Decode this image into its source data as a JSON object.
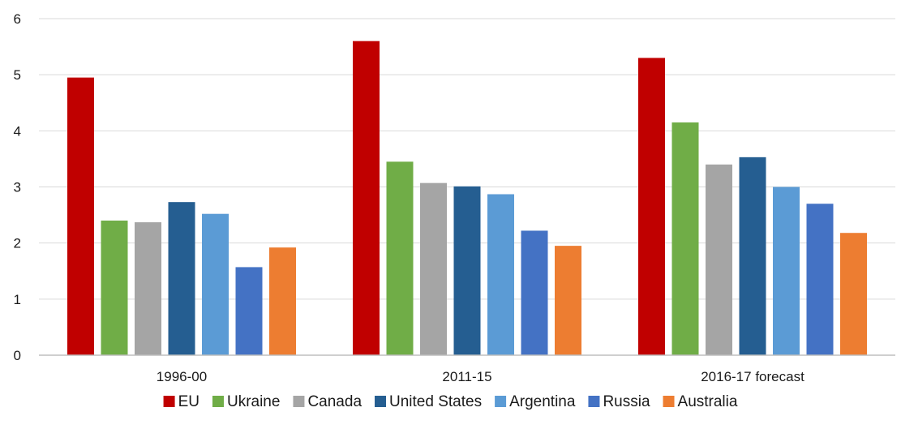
{
  "chart_data": {
    "type": "bar",
    "categories": [
      "1996-00",
      "2011-15",
      "2016-17 forecast"
    ],
    "ylim": [
      0,
      6
    ],
    "yticks": [
      0,
      1,
      2,
      3,
      4,
      5,
      6
    ],
    "grid": true,
    "legend_position": "bottom",
    "series": [
      {
        "name": "EU",
        "color": "#c00000",
        "values": [
          4.95,
          5.6,
          5.3
        ]
      },
      {
        "name": "Ukraine",
        "color": "#70ad47",
        "values": [
          2.4,
          3.45,
          4.15
        ]
      },
      {
        "name": "Canada",
        "color": "#a5a5a5",
        "values": [
          2.37,
          3.07,
          3.4
        ]
      },
      {
        "name": "United States",
        "color": "#255e91",
        "values": [
          2.73,
          3.01,
          3.53
        ]
      },
      {
        "name": "Argentina",
        "color": "#5b9bd5",
        "values": [
          2.52,
          2.87,
          3.0
        ]
      },
      {
        "name": "Russia",
        "color": "#4472c4",
        "values": [
          1.57,
          2.22,
          2.7
        ]
      },
      {
        "name": "Australia",
        "color": "#ed7d31",
        "values": [
          1.92,
          1.95,
          2.18
        ]
      }
    ]
  }
}
